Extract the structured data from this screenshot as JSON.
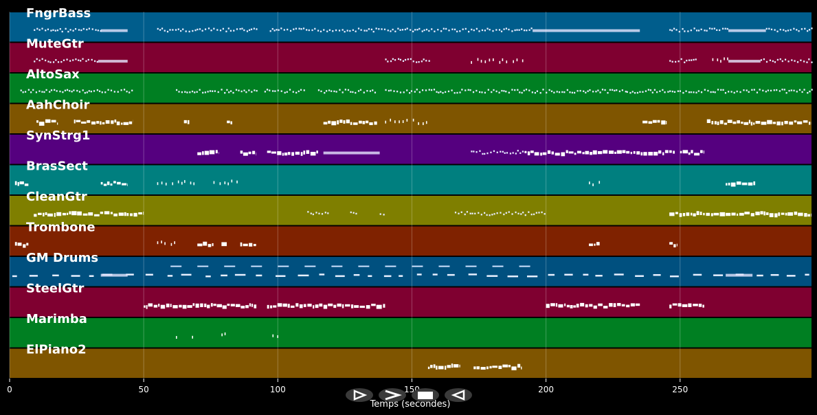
{
  "chart_data": {
    "type": "piano-roll",
    "xlabel": "Temps (secondes)",
    "xlim": [
      0,
      299
    ],
    "xticks": [
      0,
      50,
      100,
      150,
      200,
      250
    ],
    "grid": true,
    "tracks": [
      {
        "name": "FngrBass",
        "color": "#005d8c",
        "segments": [
          [
            9,
            34,
            "dots"
          ],
          [
            34,
            44,
            "line"
          ],
          [
            55,
            92,
            "dots"
          ],
          [
            97,
            195,
            "dots"
          ],
          [
            195,
            235,
            "line"
          ],
          [
            246,
            268,
            "dots"
          ],
          [
            268,
            282,
            "line"
          ],
          [
            282,
            299,
            "dots"
          ]
        ]
      },
      {
        "name": "MuteGtr",
        "color": "#7f0030",
        "segments": [
          [
            9,
            33,
            "dots"
          ],
          [
            33,
            44,
            "line"
          ],
          [
            140,
            157,
            "dots"
          ],
          [
            172,
            192,
            "sparse"
          ],
          [
            246,
            256,
            "dots"
          ],
          [
            262,
            268,
            "sparse"
          ],
          [
            268,
            280,
            "line"
          ],
          [
            280,
            299,
            "dots"
          ]
        ]
      },
      {
        "name": "AltoSax",
        "color": "#007f22",
        "segments": [
          [
            4,
            46,
            "dots"
          ],
          [
            62,
            92,
            "dots"
          ],
          [
            95,
            110,
            "dots"
          ],
          [
            115,
            137,
            "dots"
          ],
          [
            140,
            230,
            "dots"
          ],
          [
            230,
            299,
            "dots"
          ]
        ]
      },
      {
        "name": "AahChoir",
        "color": "#7f5500",
        "segments": [
          [
            10,
            18,
            "blocks"
          ],
          [
            24,
            46,
            "blocks"
          ],
          [
            65,
            67,
            "blocks"
          ],
          [
            81,
            83,
            "blocks"
          ],
          [
            117,
            137,
            "blocks"
          ],
          [
            140,
            157,
            "sparse"
          ],
          [
            236,
            245,
            "blocks"
          ],
          [
            260,
            299,
            "blocks"
          ]
        ]
      },
      {
        "name": "SynStrg1",
        "color": "#55007f",
        "segments": [
          [
            70,
            78,
            "blocks"
          ],
          [
            86,
            92,
            "blocks"
          ],
          [
            96,
            115,
            "blocks"
          ],
          [
            117,
            138,
            "line"
          ],
          [
            172,
            192,
            "dots"
          ],
          [
            192,
            248,
            "blocks"
          ],
          [
            250,
            259,
            "blocks"
          ]
        ]
      },
      {
        "name": "BrasSect",
        "color": "#007f7f",
        "segments": [
          [
            2,
            7,
            "blocks"
          ],
          [
            34,
            44,
            "blocks"
          ],
          [
            55,
            70,
            "sparse"
          ],
          [
            76,
            85,
            "sparse"
          ],
          [
            216,
            220,
            "sparse"
          ],
          [
            267,
            278,
            "blocks"
          ]
        ]
      },
      {
        "name": "CleanGtr",
        "color": "#7f7f00",
        "segments": [
          [
            9,
            50,
            "blocks"
          ],
          [
            111,
            119,
            "dots"
          ],
          [
            127,
            129,
            "dots"
          ],
          [
            138,
            140,
            "dots"
          ],
          [
            166,
            200,
            "dots"
          ],
          [
            246,
            299,
            "blocks"
          ]
        ]
      },
      {
        "name": "Trombone",
        "color": "#7f2200",
        "segments": [
          [
            2,
            7,
            "blocks"
          ],
          [
            55,
            63,
            "sparse"
          ],
          [
            70,
            76,
            "blocks"
          ],
          [
            79,
            81,
            "blocks"
          ],
          [
            86,
            92,
            "blocks"
          ],
          [
            216,
            220,
            "blocks"
          ],
          [
            246,
            249,
            "blocks"
          ]
        ]
      },
      {
        "name": "GM Drums",
        "color": "#00507f",
        "segments": [
          [
            1,
            299,
            "drums"
          ],
          [
            34,
            44,
            "line"
          ],
          [
            267,
            277,
            "line"
          ]
        ]
      },
      {
        "name": "SteelGtr",
        "color": "#7f0030",
        "segments": [
          [
            50,
            92,
            "blocks"
          ],
          [
            96,
            140,
            "blocks"
          ],
          [
            200,
            235,
            "blocks"
          ],
          [
            246,
            259,
            "blocks"
          ]
        ]
      },
      {
        "name": "Marimba",
        "color": "#007f22",
        "segments": [
          [
            62,
            63,
            "sparse"
          ],
          [
            68,
            69,
            "sparse"
          ],
          [
            79,
            81,
            "sparse"
          ],
          [
            98,
            100,
            "sparse"
          ]
        ]
      },
      {
        "name": "ElPiano2",
        "color": "#7f5500",
        "segments": [
          [
            156,
            168,
            "blocks"
          ],
          [
            173,
            191,
            "blocks"
          ]
        ]
      }
    ]
  },
  "controls": [
    {
      "icon": "play-icon",
      "label": "play"
    },
    {
      "icon": "forward-icon",
      "label": "forward"
    },
    {
      "icon": "stop-icon",
      "label": "stop"
    },
    {
      "icon": "rewind-icon",
      "label": "rewind"
    }
  ]
}
